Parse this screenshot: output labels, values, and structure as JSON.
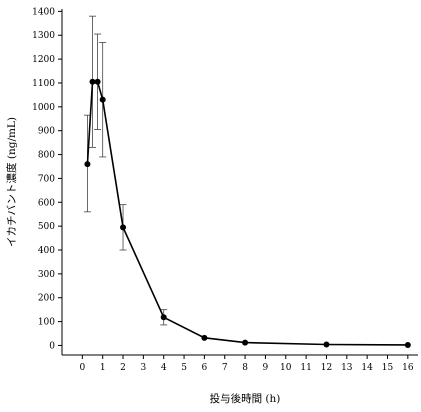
{
  "chart_data": {
    "type": "line",
    "title": "",
    "xlabel": "投与後時間 (h)",
    "ylabel": "イカチバント濃度 (ng/mL)",
    "xlim": [
      -1,
      16.5
    ],
    "ylim": [
      -40,
      1410
    ],
    "x_ticks": [
      0,
      1,
      2,
      3,
      4,
      5,
      6,
      7,
      8,
      9,
      10,
      11,
      12,
      13,
      14,
      15,
      16
    ],
    "y_ticks": [
      0,
      100,
      200,
      300,
      400,
      500,
      600,
      700,
      800,
      900,
      1000,
      1100,
      1200,
      1300,
      1400
    ],
    "grid": false,
    "legend": "none",
    "color": "#000000",
    "series": [
      {
        "x": [
          0.25,
          0.5,
          0.75,
          1,
          2,
          4,
          6,
          8,
          12,
          16
        ],
        "y": [
          760,
          1105,
          1105,
          1030,
          495,
          118,
          32,
          12,
          4,
          2
        ],
        "error_low": [
          200,
          275,
          200,
          240,
          95,
          32,
          0,
          0,
          0,
          0
        ],
        "error_high": [
          205,
          275,
          200,
          240,
          95,
          32,
          0,
          0,
          0,
          0
        ]
      }
    ]
  }
}
